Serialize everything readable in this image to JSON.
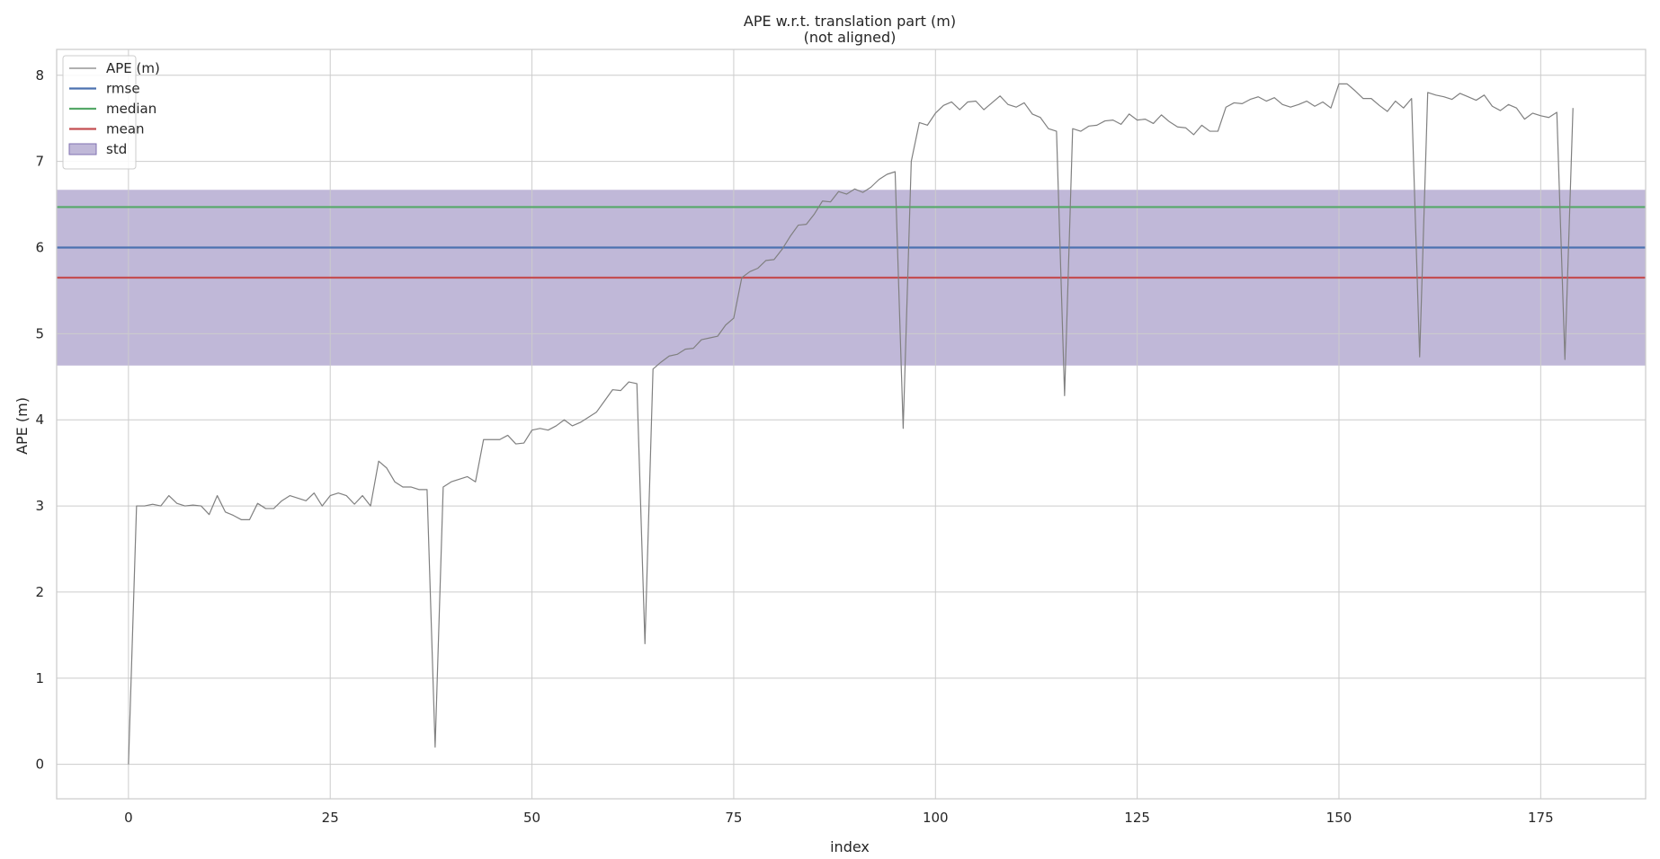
{
  "chart_data": {
    "type": "line",
    "title": "APE w.r.t. translation part (m)",
    "subtitle": "(not aligned)",
    "xlabel": "index",
    "ylabel": "APE (m)",
    "xlim": [
      -8.9,
      188
    ],
    "ylim": [
      -0.4,
      8.3
    ],
    "x_ticks": [
      0,
      25,
      50,
      75,
      100,
      125,
      150,
      175
    ],
    "y_ticks": [
      0,
      1,
      2,
      3,
      4,
      5,
      6,
      7,
      8
    ],
    "grid": true,
    "legend_position": "top-left",
    "colors": {
      "ape": "#808080",
      "rmse": "#4c72b0",
      "median": "#55a868",
      "mean": "#c44e52",
      "std": "#8172b2"
    },
    "legend": [
      {
        "label": "APE (m)",
        "kind": "line",
        "color_key": "ape"
      },
      {
        "label": "rmse",
        "kind": "line",
        "color_key": "rmse"
      },
      {
        "label": "median",
        "kind": "line",
        "color_key": "median"
      },
      {
        "label": "mean",
        "kind": "line",
        "color_key": "mean"
      },
      {
        "label": "std",
        "kind": "patch",
        "color_key": "std"
      }
    ],
    "stats": {
      "rmse": 6.0,
      "median": 6.47,
      "mean": 5.65,
      "std": 1.02
    },
    "series": [
      {
        "name": "APE (m)",
        "values": [
          0.0,
          3.0,
          3.0,
          3.02,
          3.0,
          3.12,
          3.03,
          3.0,
          3.01,
          3.0,
          2.9,
          3.12,
          2.93,
          2.89,
          2.84,
          2.84,
          3.03,
          2.97,
          2.97,
          3.06,
          3.12,
          3.09,
          3.06,
          3.15,
          3.0,
          3.12,
          3.15,
          3.12,
          3.02,
          3.12,
          3.0,
          3.52,
          3.44,
          3.28,
          3.22,
          3.22,
          3.19,
          3.19,
          0.2,
          3.22,
          3.28,
          3.31,
          3.34,
          3.28,
          3.77,
          3.77,
          3.77,
          3.82,
          3.72,
          3.73,
          3.88,
          3.9,
          3.88,
          3.93,
          4.0,
          3.93,
          3.97,
          4.03,
          4.09,
          4.22,
          4.35,
          4.34,
          4.44,
          4.42,
          1.4,
          4.59,
          4.67,
          4.74,
          4.76,
          4.82,
          4.83,
          4.93,
          4.95,
          4.97,
          5.1,
          5.18,
          5.65,
          5.72,
          5.76,
          5.85,
          5.86,
          5.98,
          6.13,
          6.26,
          6.27,
          6.39,
          6.54,
          6.53,
          6.65,
          6.62,
          6.68,
          6.64,
          6.7,
          6.79,
          6.85,
          6.88,
          3.9,
          7.0,
          7.45,
          7.42,
          7.56,
          7.65,
          7.69,
          7.6,
          7.69,
          7.7,
          7.6,
          7.68,
          7.76,
          7.66,
          7.63,
          7.68,
          7.55,
          7.51,
          7.38,
          7.35,
          4.28,
          7.38,
          7.35,
          7.41,
          7.42,
          7.47,
          7.48,
          7.43,
          7.55,
          7.48,
          7.49,
          7.44,
          7.54,
          7.46,
          7.4,
          7.39,
          7.31,
          7.42,
          7.35,
          7.35,
          7.63,
          7.68,
          7.67,
          7.72,
          7.75,
          7.7,
          7.74,
          7.66,
          7.63,
          7.66,
          7.7,
          7.64,
          7.69,
          7.62,
          7.9,
          7.9,
          7.82,
          7.73,
          7.73,
          7.65,
          7.58,
          7.7,
          7.62,
          7.73,
          4.73,
          7.8,
          7.77,
          7.75,
          7.72,
          7.79,
          7.75,
          7.71,
          7.77,
          7.64,
          7.59,
          7.66,
          7.62,
          7.49,
          7.56,
          7.53,
          7.51,
          7.57,
          4.7,
          7.62
        ]
      }
    ]
  }
}
